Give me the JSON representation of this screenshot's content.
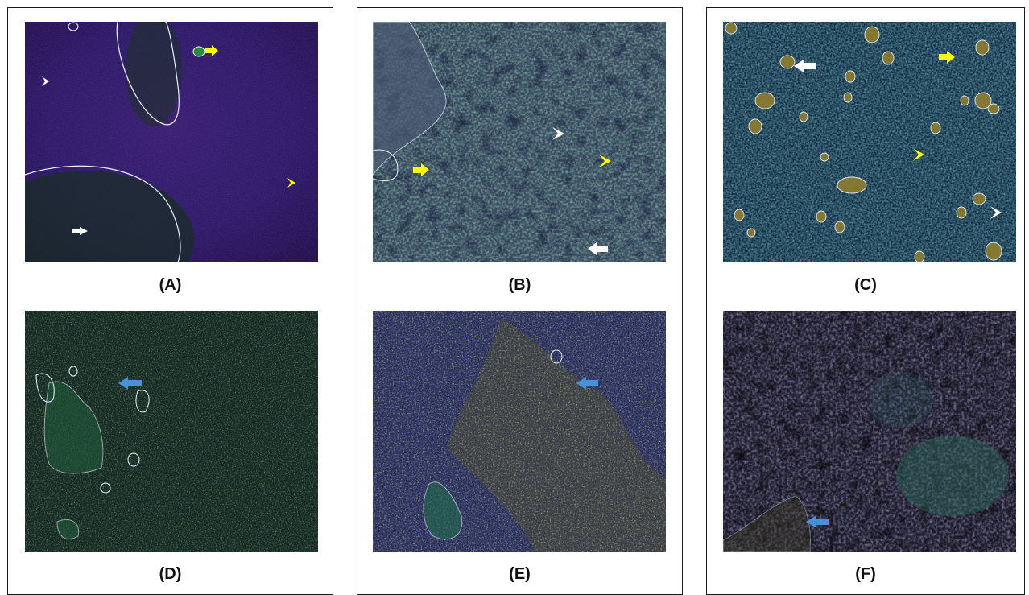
{
  "panels": [
    {
      "id": "A",
      "label": "(A)"
    },
    {
      "id": "B",
      "label": "(B)"
    },
    {
      "id": "C",
      "label": "(C)"
    },
    {
      "id": "D",
      "label": "(D)"
    },
    {
      "id": "E",
      "label": "(E)"
    },
    {
      "id": "F",
      "label": "(F)"
    }
  ],
  "colors": {
    "white_marker": "#ffffff",
    "yellow_marker": "#ffff00",
    "blue_marker": "#4a90d9",
    "outline": "#e8f4ff"
  }
}
